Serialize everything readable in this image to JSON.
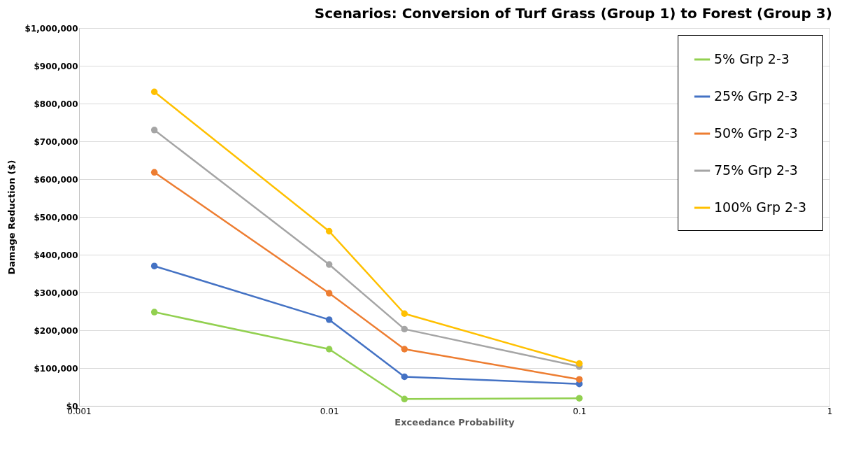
{
  "chart_data": {
    "type": "line",
    "title": "Scenarios: Conversion of Turf Grass (Group 1) to Forest (Group 3)",
    "xlabel": "Exceedance Probability",
    "ylabel": "Damage Reduction ($)",
    "x": [
      0.002,
      0.01,
      0.02,
      0.1
    ],
    "series": [
      {
        "name": "5% Grp 2-3",
        "color": "#92d050",
        "values": [
          248000,
          150000,
          18000,
          20000
        ]
      },
      {
        "name": "25% Grp 2-3",
        "color": "#4472c4",
        "values": [
          370000,
          228000,
          77000,
          58000
        ]
      },
      {
        "name": "50% Grp 2-3",
        "color": "#ed7d31",
        "values": [
          618000,
          298000,
          150000,
          70000
        ]
      },
      {
        "name": "75% Grp 2-3",
        "color": "#a5a5a5",
        "values": [
          730000,
          374000,
          203000,
          104000
        ]
      },
      {
        "name": "100% Grp 2-3",
        "color": "#ffc000",
        "values": [
          831000,
          462000,
          244000,
          112000
        ]
      }
    ],
    "log": "x",
    "xlim": [
      0.001,
      1
    ],
    "xticks": [
      0.001,
      0.01,
      0.1,
      1
    ],
    "ylim": [
      0,
      1000000
    ],
    "yticks": [
      {
        "value": 0,
        "label": "$0"
      },
      {
        "value": 100000,
        "label": "$100,000"
      },
      {
        "value": 200000,
        "label": "$200,000"
      },
      {
        "value": 300000,
        "label": "$300,000"
      },
      {
        "value": 400000,
        "label": "$400,000"
      },
      {
        "value": 500000,
        "label": "$500,000"
      },
      {
        "value": 600000,
        "label": "$600,000"
      },
      {
        "value": 700000,
        "label": "$700,000"
      },
      {
        "value": 800000,
        "label": "$800,000"
      },
      {
        "value": 900000,
        "label": "$900,000"
      },
      {
        "value": 1000000,
        "label": "$1,000,000"
      }
    ],
    "grid": "y",
    "legend": "top right",
    "marker": "circle",
    "line_style": "solid"
  }
}
